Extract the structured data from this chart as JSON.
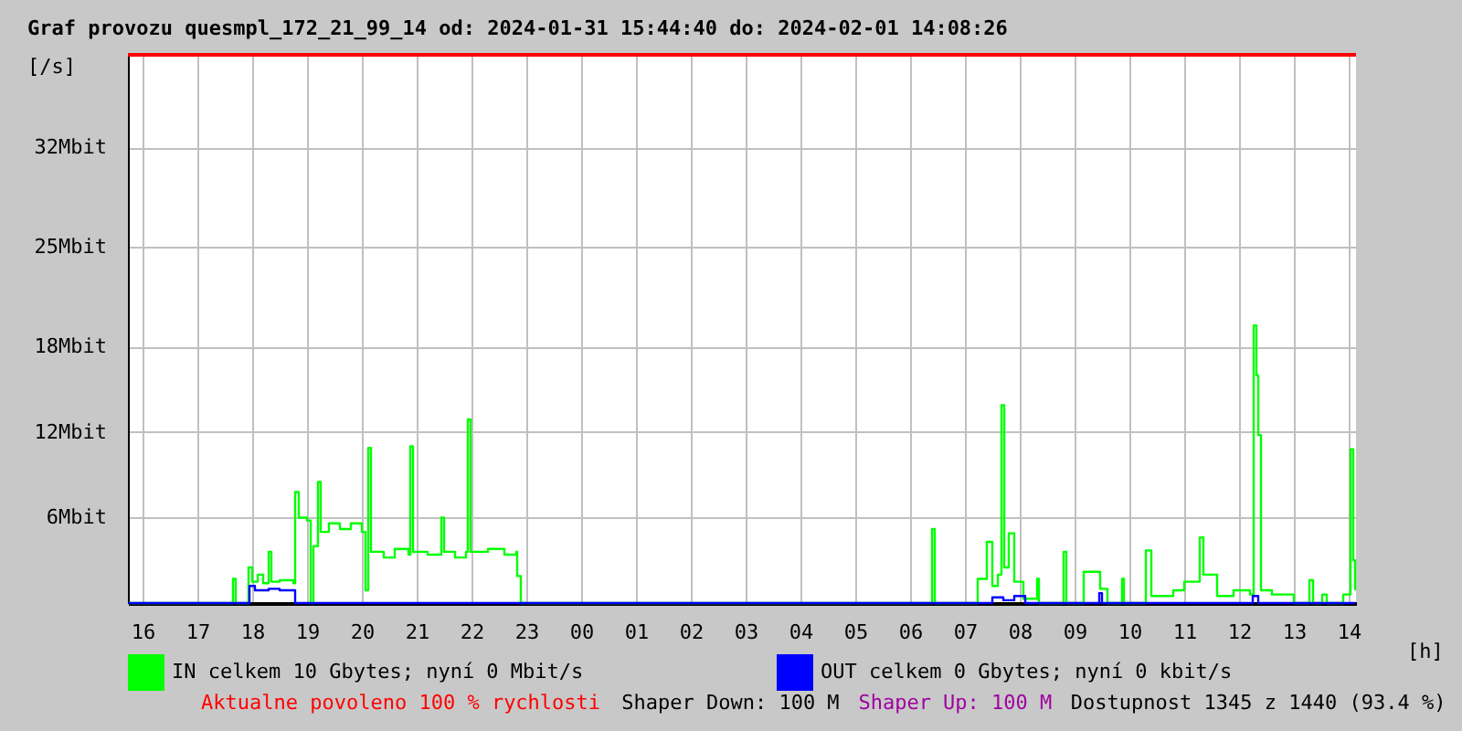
{
  "chart_data": {
    "type": "step",
    "title": "Graf provozu quesmpl_172_21_99_14 od: 2024-01-31 15:44:40 do: 2024-02-01 14:08:26",
    "ylabel": "[/s]",
    "xlabel": "[h]",
    "xlim": [
      "2024-01-31T15:44",
      "2024-02-01T14:08"
    ],
    "xticks": [
      {
        "value": "2024-01-31T16:00",
        "label": "16"
      },
      {
        "value": "2024-01-31T17:00",
        "label": "17"
      },
      {
        "value": "2024-01-31T18:00",
        "label": "18"
      },
      {
        "value": "2024-01-31T19:00",
        "label": "19"
      },
      {
        "value": "2024-01-31T20:00",
        "label": "20"
      },
      {
        "value": "2024-01-31T21:00",
        "label": "21"
      },
      {
        "value": "2024-01-31T22:00",
        "label": "22"
      },
      {
        "value": "2024-01-31T23:00",
        "label": "23"
      },
      {
        "value": "2024-02-01T00:00",
        "label": "00"
      },
      {
        "value": "2024-02-01T01:00",
        "label": "01"
      },
      {
        "value": "2024-02-01T02:00",
        "label": "02"
      },
      {
        "value": "2024-02-01T03:00",
        "label": "03"
      },
      {
        "value": "2024-02-01T04:00",
        "label": "04"
      },
      {
        "value": "2024-02-01T05:00",
        "label": "05"
      },
      {
        "value": "2024-02-01T06:00",
        "label": "06"
      },
      {
        "value": "2024-02-01T07:00",
        "label": "07"
      },
      {
        "value": "2024-02-01T08:00",
        "label": "08"
      },
      {
        "value": "2024-02-01T09:00",
        "label": "09"
      },
      {
        "value": "2024-02-01T10:00",
        "label": "10"
      },
      {
        "value": "2024-02-01T11:00",
        "label": "11"
      },
      {
        "value": "2024-02-01T12:00",
        "label": "12"
      },
      {
        "value": "2024-02-01T13:00",
        "label": "13"
      },
      {
        "value": "2024-02-01T14:00",
        "label": "14"
      }
    ],
    "ylim": [
      0,
      38.5
    ],
    "yticks": [
      {
        "value": 6,
        "label": "6Mbit"
      },
      {
        "value": 12,
        "label": "12Mbit"
      },
      {
        "value": 18,
        "label": "18Mbit"
      },
      {
        "value": 25,
        "label": "25Mbit"
      },
      {
        "value": 32,
        "label": "32Mbit"
      }
    ],
    "grid": true,
    "legend": "bottom",
    "ref_lines": [
      {
        "axis": "y",
        "value": 38.5,
        "color": "#ff0000"
      }
    ],
    "series": [
      {
        "name": "IN celkem 10 Gbytes; nyní 0 Mbit/s",
        "color": "#00ff00",
        "x": [
          "2024-01-31T15:45",
          "2024-01-31T17:36",
          "2024-01-31T17:39",
          "2024-01-31T17:42",
          "2024-01-31T17:54",
          "2024-01-31T17:56",
          "2024-01-31T18:00",
          "2024-01-31T18:06",
          "2024-01-31T18:12",
          "2024-01-31T18:18",
          "2024-01-31T18:21",
          "2024-01-31T18:30",
          "2024-01-31T18:45",
          "2024-01-31T18:47",
          "2024-01-31T18:51",
          "2024-01-31T19:00",
          "2024-01-31T19:04",
          "2024-01-31T19:07",
          "2024-01-31T19:12",
          "2024-01-31T19:15",
          "2024-01-31T19:24",
          "2024-01-31T19:36",
          "2024-01-31T19:48",
          "2024-01-31T20:00",
          "2024-01-31T20:04",
          "2024-01-31T20:07",
          "2024-01-31T20:10",
          "2024-01-31T20:24",
          "2024-01-31T20:36",
          "2024-01-31T20:51",
          "2024-01-31T20:53",
          "2024-01-31T20:56",
          "2024-01-31T21:12",
          "2024-01-31T21:27",
          "2024-01-31T21:30",
          "2024-01-31T21:42",
          "2024-01-31T21:54",
          "2024-01-31T21:56",
          "2024-01-31T21:59",
          "2024-01-31T22:18",
          "2024-01-31T22:36",
          "2024-01-31T22:49",
          "2024-01-31T22:50",
          "2024-01-31T22:54",
          "2024-02-01T06:21",
          "2024-02-01T06:24",
          "2024-02-01T06:27",
          "2024-02-01T07:12",
          "2024-02-01T07:14",
          "2024-02-01T07:24",
          "2024-02-01T07:30",
          "2024-02-01T07:36",
          "2024-02-01T07:40",
          "2024-02-01T07:43",
          "2024-02-01T07:48",
          "2024-02-01T07:54",
          "2024-02-01T08:04",
          "2024-02-01T08:19",
          "2024-02-01T08:21",
          "2024-02-01T08:48",
          "2024-02-01T08:51",
          "2024-02-01T09:10",
          "2024-02-01T09:28",
          "2024-02-01T09:36",
          "2024-02-01T09:52",
          "2024-02-01T09:54",
          "2024-02-01T10:18",
          "2024-02-01T10:24",
          "2024-02-01T10:48",
          "2024-02-01T11:00",
          "2024-02-01T11:17",
          "2024-02-01T11:21",
          "2024-02-01T11:36",
          "2024-02-01T11:54",
          "2024-02-01T12:12",
          "2024-02-01T12:16",
          "2024-02-01T12:19",
          "2024-02-01T12:21",
          "2024-02-01T12:24",
          "2024-02-01T12:36",
          "2024-02-01T13:00",
          "2024-02-01T13:17",
          "2024-02-01T13:21",
          "2024-02-01T13:31",
          "2024-02-01T13:36",
          "2024-02-01T13:54",
          "2024-02-01T14:02",
          "2024-02-01T14:05",
          "2024-02-01T14:07"
        ],
        "values": [
          0,
          0,
          1.7,
          0,
          0,
          2.5,
          1.5,
          2.0,
          1.4,
          3.6,
          1.5,
          1.6,
          1.4,
          7.8,
          6.0,
          5.8,
          0,
          4.0,
          8.5,
          5.0,
          5.6,
          5.2,
          5.6,
          5.0,
          0.9,
          10.9,
          3.6,
          3.2,
          3.8,
          3.4,
          11.0,
          3.6,
          3.4,
          6.0,
          3.6,
          3.2,
          3.6,
          12.9,
          3.6,
          3.8,
          3.4,
          3.6,
          1.9,
          0,
          0,
          5.2,
          0,
          0,
          1.7,
          4.3,
          1.2,
          2.0,
          13.9,
          2.5,
          4.9,
          1.5,
          0.3,
          1.7,
          0,
          3.6,
          0,
          2.2,
          1.0,
          0,
          1.7,
          0,
          3.7,
          0.5,
          0.9,
          1.5,
          4.6,
          2.0,
          0.5,
          0.9,
          0.6,
          19.5,
          16.0,
          11.8,
          0.9,
          0.6,
          0,
          1.6,
          0,
          0.6,
          0,
          0.6,
          10.8,
          3.0,
          0.9
        ]
      },
      {
        "name": "OUT celkem 0 Gbytes; nyní 0 kbit/s",
        "color": "#0000ff",
        "x": [
          "2024-01-31T15:45",
          "2024-01-31T17:56",
          "2024-01-31T17:57",
          "2024-01-31T18:03",
          "2024-01-31T18:18",
          "2024-01-31T18:30",
          "2024-01-31T18:45",
          "2024-01-31T18:47",
          "2024-02-01T07:18",
          "2024-02-01T07:30",
          "2024-02-01T07:42",
          "2024-02-01T07:54",
          "2024-02-01T08:06",
          "2024-02-01T09:24",
          "2024-02-01T09:27",
          "2024-02-01T09:30",
          "2024-02-01T12:12",
          "2024-02-01T12:15",
          "2024-02-01T12:21",
          "2024-02-01T14:07"
        ],
        "values": [
          0,
          0,
          1.2,
          0.9,
          1.0,
          0.9,
          0.9,
          0,
          0,
          0.4,
          0.2,
          0.5,
          0,
          0,
          0.7,
          0,
          0,
          0.5,
          0,
          0
        ]
      }
    ],
    "annotations": [
      "Aktualne povoleno 100 % rychlosti",
      "Shaper Down: 100 M",
      "Shaper Up: 100 M",
      "Dostupnost 1345 z 1440 (93.4 %)"
    ]
  }
}
